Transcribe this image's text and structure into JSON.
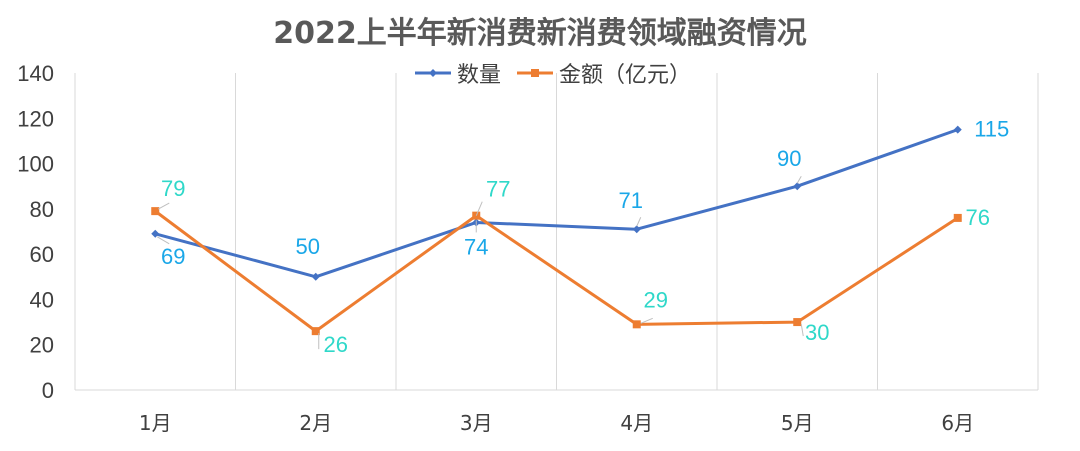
{
  "chart_data": {
    "type": "line",
    "title": "2022上半年新消费新消费领域融资情况",
    "categories": [
      "1月",
      "2月",
      "3月",
      "4月",
      "5月",
      "6月"
    ],
    "series": [
      {
        "name": "数量",
        "values": [
          69,
          50,
          74,
          71,
          90,
          115
        ],
        "color": "#4472C4",
        "label_color": "#1AA7E8",
        "marker": "diamond"
      },
      {
        "name": "金额（亿元）",
        "values": [
          79,
          26,
          77,
          29,
          30,
          76
        ],
        "color": "#ED7D31",
        "label_color": "#2FD8C9",
        "marker": "square"
      }
    ],
    "y_ticks": [
      "0",
      "20",
      "40",
      "60",
      "80",
      "100",
      "120",
      "140"
    ],
    "ylim": [
      0,
      140
    ],
    "grid": "vertical",
    "legend": "top-center"
  }
}
